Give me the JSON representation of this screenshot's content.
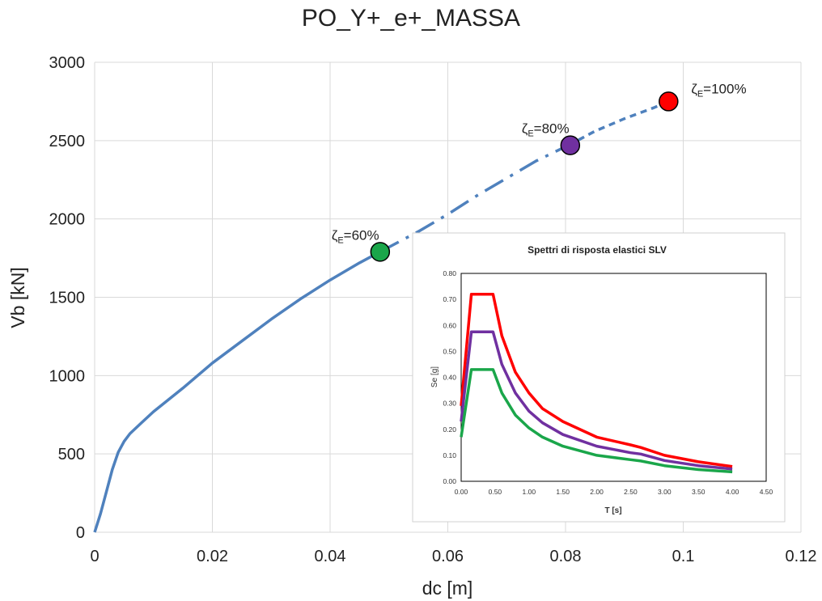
{
  "chart_data": [
    {
      "type": "line",
      "title": "PO_Y+_e+_MASSA",
      "xlabel": "dc [m]",
      "ylabel": "Vb [kN]",
      "xlim": [
        0,
        0.12
      ],
      "ylim": [
        0,
        3000
      ],
      "x_ticks": [
        "0",
        "0.02",
        "0.04",
        "0.06",
        "0.08",
        "0.1",
        "0.12"
      ],
      "y_ticks": [
        "0",
        "500",
        "1000",
        "1500",
        "2000",
        "2500",
        "3000"
      ],
      "grid": true,
      "series": [
        {
          "style": "solid",
          "color": "#4f81bd",
          "x": [
            0,
            0.001,
            0.002,
            0.003,
            0.004,
            0.005,
            0.006,
            0.008,
            0.01,
            0.012,
            0.015,
            0.02,
            0.025,
            0.03,
            0.035,
            0.04,
            0.045,
            0.0485
          ],
          "y": [
            0,
            120,
            260,
            400,
            510,
            580,
            630,
            700,
            770,
            830,
            920,
            1080,
            1220,
            1360,
            1490,
            1610,
            1720,
            1790
          ]
        },
        {
          "style": "dash-dot",
          "color": "#4f81bd",
          "x": [
            0.0485,
            0.055,
            0.06,
            0.065,
            0.07,
            0.075,
            0.0805
          ],
          "y": [
            1790,
            1920,
            2030,
            2150,
            2260,
            2370,
            2470
          ]
        },
        {
          "style": "dashed",
          "color": "#4f81bd",
          "x": [
            0.0805,
            0.085,
            0.09,
            0.095,
            0.0975
          ],
          "y": [
            2470,
            2560,
            2640,
            2710,
            2750
          ]
        }
      ],
      "markers": [
        {
          "x": 0.0485,
          "y": 1790,
          "color": "#1aa64a",
          "label_main": "ζ",
          "label_sub": "E",
          "label_rest": "=60%"
        },
        {
          "x": 0.0808,
          "y": 2470,
          "color": "#7030a0",
          "label_main": "ζ",
          "label_sub": "E",
          "label_rest": "=80%"
        },
        {
          "x": 0.0975,
          "y": 2750,
          "color": "#ff0000",
          "label_main": "ζ",
          "label_sub": "E",
          "label_rest": "=100%"
        }
      ]
    },
    {
      "type": "line",
      "title": "Spettri di risposta elastici SLV",
      "xlabel": "T [s]",
      "ylabel": "Se [g]",
      "xlim": [
        0,
        4.5
      ],
      "ylim": [
        0,
        0.8
      ],
      "x_ticks": [
        "0.00",
        "0.50",
        "1.00",
        "1.50",
        "2.00",
        "2.50",
        "3.00",
        "3.50",
        "4.00",
        "4.50"
      ],
      "y_ticks": [
        "0.00",
        "0.10",
        "0.20",
        "0.30",
        "0.40",
        "0.50",
        "0.60",
        "0.70",
        "0.80"
      ],
      "grid": false,
      "series": [
        {
          "color": "#ff0000",
          "x": [
            0,
            0.15,
            0.47,
            0.6,
            0.8,
            1.0,
            1.2,
            1.5,
            2.0,
            2.5,
            2.65,
            3.0,
            3.5,
            4.0
          ],
          "y": [
            0.29,
            0.72,
            0.72,
            0.56,
            0.42,
            0.34,
            0.28,
            0.23,
            0.17,
            0.14,
            0.13,
            0.1,
            0.075,
            0.057
          ]
        },
        {
          "color": "#7030a0",
          "x": [
            0,
            0.15,
            0.47,
            0.6,
            0.8,
            1.0,
            1.2,
            1.5,
            2.0,
            2.5,
            2.65,
            3.0,
            3.5,
            4.0
          ],
          "y": [
            0.23,
            0.575,
            0.575,
            0.45,
            0.34,
            0.27,
            0.225,
            0.18,
            0.135,
            0.11,
            0.105,
            0.08,
            0.06,
            0.047
          ]
        },
        {
          "color": "#1aa64a",
          "x": [
            0,
            0.15,
            0.47,
            0.6,
            0.8,
            1.0,
            1.2,
            1.5,
            2.0,
            2.5,
            2.65,
            3.0,
            3.5,
            4.0
          ],
          "y": [
            0.17,
            0.43,
            0.43,
            0.34,
            0.255,
            0.205,
            0.17,
            0.135,
            0.1,
            0.083,
            0.078,
            0.06,
            0.045,
            0.036
          ]
        }
      ]
    }
  ]
}
